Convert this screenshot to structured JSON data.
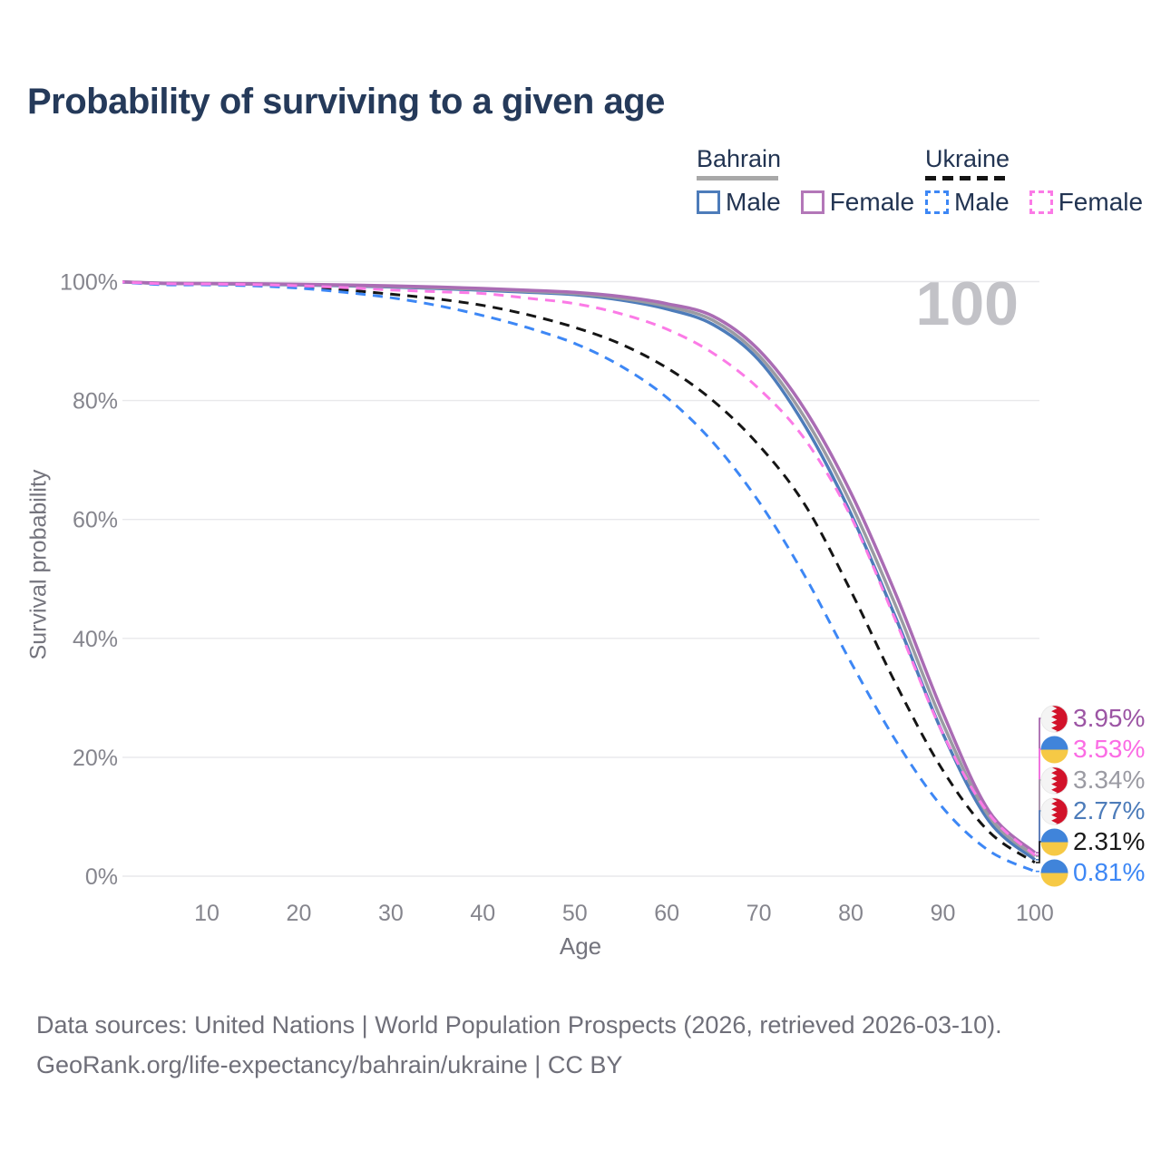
{
  "page": {
    "watermark": "100"
  },
  "legend": {
    "groups": [
      {
        "country": "Bahrain",
        "line_style": "solid",
        "entries": [
          {
            "label": "Male",
            "color": "#4d7cba"
          },
          {
            "label": "Female",
            "color": "#b377b8"
          }
        ]
      },
      {
        "country": "Ukraine",
        "line_style": "dashed",
        "entries": [
          {
            "label": "Male",
            "color": "#3d87f5"
          },
          {
            "label": "Female",
            "color": "#fb7ae6"
          }
        ]
      }
    ]
  },
  "footer": {
    "line1": "Data sources: United Nations | World Population Prospects (2026, retrieved 2026-03-10).",
    "line2": "GeoRank.org/life-expectancy/bahrain/ukraine | CC BY"
  },
  "chart_data": {
    "type": "line",
    "title": "Probability of surviving to a given age",
    "xlabel": "Age",
    "ylabel": "Survival probability",
    "xlim": [
      0,
      100
    ],
    "ylim": [
      0,
      100
    ],
    "grid": "horizontal",
    "legend_position": "top-right",
    "watermark_age": "100",
    "x_ticks": [
      10,
      20,
      30,
      40,
      50,
      60,
      70,
      80,
      90,
      100
    ],
    "y_ticks": [
      {
        "label": "0%",
        "value": 0
      },
      {
        "label": "20%",
        "value": 20
      },
      {
        "label": "40%",
        "value": 40
      },
      {
        "label": "60%",
        "value": 60
      },
      {
        "label": "80%",
        "value": 80
      },
      {
        "label": "100%",
        "value": 100
      }
    ],
    "ages": [
      0,
      5,
      10,
      15,
      20,
      25,
      30,
      35,
      40,
      45,
      50,
      55,
      60,
      65,
      70,
      75,
      80,
      85,
      90,
      95,
      100
    ],
    "series": [
      {
        "name": "Bahrain Male",
        "country": "Bahrain",
        "sex": "Male",
        "style": "solid",
        "color": "#4d7cba",
        "label_color": "#4d7cba",
        "end_value_pct": 2.77,
        "values": [
          100,
          99.7,
          99.65,
          99.55,
          99.45,
          99.3,
          99.1,
          98.85,
          98.55,
          98.2,
          97.8,
          96.9,
          95.4,
          92.8,
          86.8,
          75.8,
          61.0,
          43.0,
          24.0,
          9.3,
          2.77
        ]
      },
      {
        "name": "Bahrain Total",
        "country": "Bahrain",
        "sex": "Both",
        "style": "solid",
        "color": "#9b9ba3",
        "label_color": "#9b9ba3",
        "end_value_pct": 3.34,
        "values": [
          100,
          99.72,
          99.67,
          99.6,
          99.5,
          99.37,
          99.2,
          98.97,
          98.7,
          98.37,
          98.0,
          97.2,
          95.85,
          93.5,
          87.6,
          77.1,
          62.7,
          45.0,
          25.7,
          10.1,
          3.34
        ]
      },
      {
        "name": "Bahrain Female",
        "country": "Bahrain",
        "sex": "Female",
        "style": "solid",
        "color": "#aa6cb4",
        "label_color": "#9c55a4",
        "end_value_pct": 3.95,
        "values": [
          100,
          99.75,
          99.7,
          99.65,
          99.55,
          99.45,
          99.3,
          99.1,
          98.85,
          98.55,
          98.2,
          97.5,
          96.3,
          94.2,
          88.5,
          78.5,
          64.5,
          47.0,
          27.5,
          11.0,
          3.95
        ]
      },
      {
        "name": "Ukraine Total",
        "country": "Ukraine",
        "sex": "Both",
        "style": "dashed",
        "color": "#151515",
        "label_color": "#1a1a1a",
        "end_value_pct": 2.31,
        "values": [
          100,
          99.6,
          99.5,
          99.4,
          99.1,
          98.6,
          97.9,
          97.1,
          96.0,
          94.4,
          92.3,
          89.5,
          85.5,
          80.0,
          72.5,
          62.5,
          48.0,
          32.0,
          17.8,
          7.5,
          2.31
        ]
      },
      {
        "name": "Ukraine Male",
        "country": "Ukraine",
        "sex": "Male",
        "style": "dashed",
        "color": "#3d87f5",
        "label_color": "#3d87f5",
        "end_value_pct": 0.81,
        "values": [
          100,
          99.5,
          99.45,
          99.3,
          98.9,
          98.2,
          97.3,
          96.0,
          94.3,
          92.2,
          89.6,
          85.8,
          80.5,
          73.0,
          63.0,
          50.5,
          36.0,
          22.5,
          11.5,
          4.3,
          0.81
        ]
      },
      {
        "name": "Ukraine Female",
        "country": "Ukraine",
        "sex": "Female",
        "style": "dashed",
        "color": "#fb7ae6",
        "label_color": "#fb6ce4",
        "end_value_pct": 3.53,
        "values": [
          100,
          99.65,
          99.6,
          99.5,
          99.3,
          99.0,
          98.6,
          98.3,
          98.0,
          97.2,
          96.3,
          94.6,
          92.0,
          88.0,
          82.0,
          73.5,
          60.5,
          42.5,
          24.0,
          10.5,
          3.53
        ]
      }
    ],
    "end_labels": [
      {
        "text": "3.95%",
        "flag": "bahrain",
        "series": "Bahrain Female"
      },
      {
        "text": "3.53%",
        "flag": "ukraine",
        "series": "Ukraine Female"
      },
      {
        "text": "3.34%",
        "flag": "bahrain",
        "series": "Bahrain Total"
      },
      {
        "text": "2.77%",
        "flag": "bahrain",
        "series": "Bahrain Male"
      },
      {
        "text": "2.31%",
        "flag": "ukraine",
        "series": "Ukraine Total"
      },
      {
        "text": "0.81%",
        "flag": "ukraine",
        "series": "Ukraine Male"
      }
    ]
  }
}
